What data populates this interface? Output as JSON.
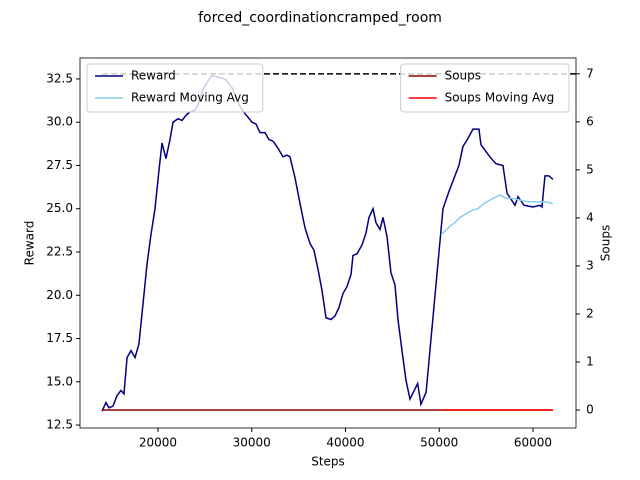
{
  "chart_data": {
    "type": "line",
    "title": "forced_coordinationcramped_room",
    "x_label": "Steps",
    "y_label": "Reward",
    "y2_label": "Soups",
    "xlim": [
      11680,
      64590
    ],
    "ylim": [
      12.33,
      33.71
    ],
    "y2lim": [
      -0.375,
      7.33
    ],
    "xticks": [
      20000,
      30000,
      40000,
      50000,
      60000
    ],
    "yticks": [
      12.5,
      {
        "value": 15,
        "label": "15.0"
      },
      17.5,
      {
        "value": 20,
        "label": "20.0"
      },
      22.5,
      {
        "value": 25,
        "label": "25.0"
      },
      27.5,
      {
        "value": 30,
        "label": "30.0"
      },
      32.5
    ],
    "y2ticks": [
      0,
      1,
      2,
      3,
      4,
      5,
      6,
      7
    ],
    "reference_line": {
      "value": 7,
      "axis": "y2",
      "color": "#000000"
    },
    "legend": "upper left",
    "legend2": "upper right",
    "series": [
      {
        "name": "Reward",
        "color": "#000080",
        "x": [
          14030,
          14450,
          14770,
          15200,
          15630,
          16050,
          16370,
          16700,
          17120,
          17550,
          17970,
          18400,
          18830,
          19250,
          19680,
          20100,
          20430,
          20850,
          21280,
          21600,
          22130,
          22560,
          22990,
          23410,
          23950,
          24270,
          24800,
          25230,
          25760,
          26400,
          27150,
          27900,
          28750,
          29280,
          30030,
          30450,
          30880,
          31410,
          31840,
          32270,
          32800,
          33330,
          33760,
          34080,
          34610,
          35150,
          35680,
          36210,
          36640,
          37070,
          37490,
          37920,
          38450,
          38880,
          39310,
          39730,
          40160,
          40590,
          40800,
          41230,
          41760,
          42190,
          42510,
          42940,
          43250,
          43680,
          44000,
          44430,
          44850,
          45280,
          45600,
          46030,
          46450,
          46880,
          47700,
          48050,
          48600,
          50400,
          51040,
          52100,
          52530,
          53000,
          53600,
          54240,
          54450,
          55400,
          56050,
          56800,
          57230,
          58080,
          58400,
          59040,
          60000,
          60750,
          60960,
          61280,
          61700,
          62130
        ],
        "values": [
          13.3,
          13.8,
          13.5,
          13.6,
          14.2,
          14.5,
          14.3,
          16.4,
          16.8,
          16.4,
          17.2,
          19.5,
          21.8,
          23.5,
          25.0,
          27.2,
          28.8,
          27.9,
          29.0,
          30.0,
          30.2,
          30.1,
          30.4,
          30.6,
          30.7,
          31.0,
          31.9,
          32.3,
          32.7,
          32.6,
          32.5,
          32.0,
          30.9,
          30.5,
          30.0,
          29.9,
          29.4,
          29.4,
          29.0,
          28.9,
          28.5,
          28.0,
          28.1,
          28.0,
          26.8,
          25.3,
          23.9,
          23.0,
          22.6,
          21.5,
          20.3,
          18.7,
          18.6,
          18.8,
          19.3,
          20.1,
          20.5,
          21.2,
          22.3,
          22.4,
          22.9,
          23.6,
          24.5,
          25.0,
          24.2,
          23.8,
          24.5,
          23.4,
          21.3,
          20.6,
          18.6,
          16.8,
          15.1,
          14.0,
          14.9,
          13.7,
          14.4,
          25.0,
          26.0,
          27.5,
          28.6,
          29.0,
          29.6,
          29.6,
          28.7,
          28.0,
          27.6,
          27.5,
          25.9,
          25.2,
          25.7,
          25.2,
          25.1,
          25.2,
          25.1,
          26.9,
          26.9,
          26.7
        ]
      },
      {
        "name": "Reward Moving Avg",
        "color": "#87ceeb",
        "x": [
          50190,
          50610,
          51150,
          51680,
          52210,
          52850,
          53490,
          54130,
          54770,
          55410,
          56480,
          57120,
          57760,
          58610,
          59470,
          60320,
          61280,
          62130
        ],
        "values": [
          23.5,
          23.7,
          24.0,
          24.2,
          24.5,
          24.7,
          24.9,
          25.0,
          25.3,
          25.5,
          25.8,
          25.6,
          25.6,
          25.5,
          25.4,
          25.4,
          25.4,
          25.3
        ]
      },
      {
        "name": "Soups",
        "color": "#8b0000",
        "axis": "y2",
        "x": [
          14030,
          62130
        ],
        "values": [
          0,
          0
        ]
      },
      {
        "name": "Soups Moving Avg",
        "color": "#ff0000",
        "axis": "y2",
        "x": [
          50190,
          62130
        ],
        "values": [
          0,
          0
        ]
      }
    ]
  }
}
